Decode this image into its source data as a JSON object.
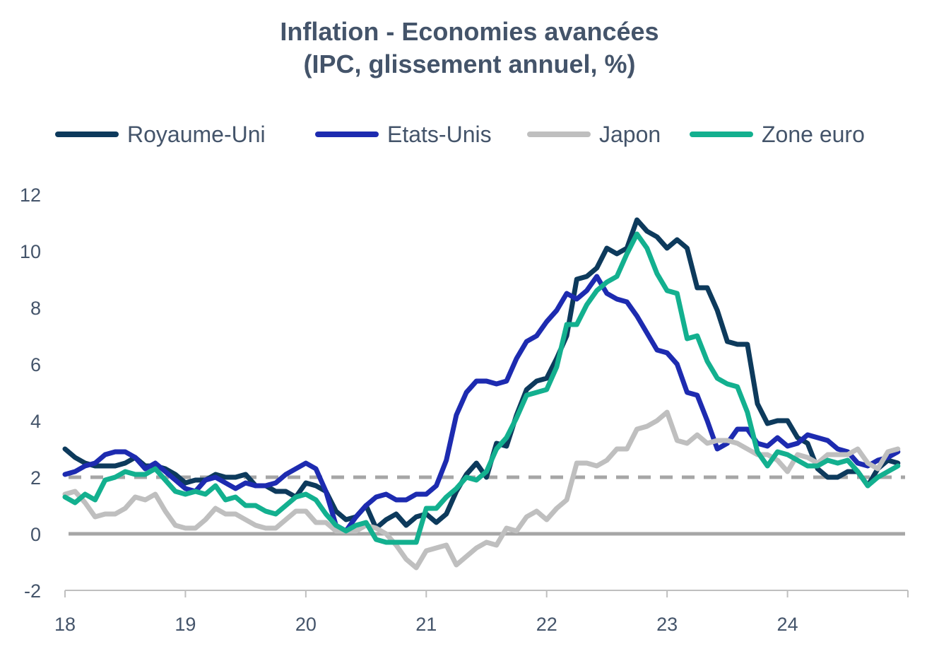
{
  "chart_data": {
    "type": "line",
    "title": "Inflation - Economies avancées",
    "subtitle": "(IPC, glissement annuel, %)",
    "xlabel": "",
    "ylabel": "",
    "x_ticks": [
      "18",
      "19",
      "20",
      "21",
      "22",
      "23",
      "24"
    ],
    "y_ticks": [
      "12",
      "10",
      "8",
      "6",
      "4",
      "2",
      "0",
      "-2"
    ],
    "ylim": [
      -2,
      12
    ],
    "xlim": [
      2018.0,
      2025.0
    ],
    "legend_position": "top",
    "grid": false,
    "reference_lines": [
      {
        "y": 0,
        "style": "solid",
        "color": "#a6a6a6"
      },
      {
        "y": 2,
        "style": "dashed",
        "color": "#a6a6a6"
      }
    ],
    "series": [
      {
        "name": "Royaume-Uni",
        "color": "#0d3a5c",
        "x_start": 2018.0,
        "step_months": 1,
        "values": [
          3.0,
          2.7,
          2.5,
          2.4,
          2.4,
          2.4,
          2.5,
          2.7,
          2.4,
          2.4,
          2.3,
          2.1,
          1.8,
          1.9,
          1.9,
          2.1,
          2.0,
          2.0,
          2.1,
          1.7,
          1.7,
          1.5,
          1.5,
          1.3,
          1.8,
          1.7,
          1.5,
          0.8,
          0.5,
          0.6,
          1.0,
          0.2,
          0.5,
          0.7,
          0.3,
          0.6,
          0.7,
          0.4,
          0.7,
          1.5,
          2.1,
          2.5,
          2.0,
          3.2,
          3.1,
          4.2,
          5.1,
          5.4,
          5.5,
          6.2,
          7.0,
          9.0,
          9.1,
          9.4,
          10.1,
          9.9,
          10.1,
          11.1,
          10.7,
          10.5,
          10.1,
          10.4,
          10.1,
          8.7,
          8.7,
          7.9,
          6.8,
          6.7,
          6.7,
          4.6,
          3.9,
          4.0,
          4.0,
          3.4,
          3.2,
          2.3,
          2.0,
          2.0,
          2.2,
          2.2,
          1.7,
          2.3,
          2.6,
          2.5
        ]
      },
      {
        "name": "Etats-Unis",
        "color": "#1d2bb0",
        "x_start": 2018.0,
        "step_months": 1,
        "values": [
          2.1,
          2.2,
          2.4,
          2.5,
          2.8,
          2.9,
          2.9,
          2.7,
          2.3,
          2.5,
          2.2,
          1.9,
          1.6,
          1.5,
          1.9,
          2.0,
          1.8,
          1.6,
          1.8,
          1.7,
          1.7,
          1.8,
          2.1,
          2.3,
          2.5,
          2.3,
          1.5,
          0.3,
          0.1,
          0.6,
          1.0,
          1.3,
          1.4,
          1.2,
          1.2,
          1.4,
          1.4,
          1.7,
          2.6,
          4.2,
          5.0,
          5.4,
          5.4,
          5.3,
          5.4,
          6.2,
          6.8,
          7.0,
          7.5,
          7.9,
          8.5,
          8.3,
          8.6,
          9.1,
          8.5,
          8.3,
          8.2,
          7.7,
          7.1,
          6.5,
          6.4,
          6.0,
          5.0,
          4.9,
          4.0,
          3.0,
          3.2,
          3.7,
          3.7,
          3.2,
          3.1,
          3.4,
          3.1,
          3.2,
          3.5,
          3.4,
          3.3,
          3.0,
          2.9,
          2.5,
          2.4,
          2.6,
          2.7,
          2.9
        ]
      },
      {
        "name": "Japon",
        "color": "#bfbfbf",
        "x_start": 2018.0,
        "step_months": 1,
        "values": [
          1.4,
          1.5,
          1.1,
          0.6,
          0.7,
          0.7,
          0.9,
          1.3,
          1.2,
          1.4,
          0.8,
          0.3,
          0.2,
          0.2,
          0.5,
          0.9,
          0.7,
          0.7,
          0.5,
          0.3,
          0.2,
          0.2,
          0.5,
          0.8,
          0.8,
          0.4,
          0.4,
          0.1,
          0.1,
          0.1,
          0.3,
          0.2,
          0.0,
          -0.4,
          -0.9,
          -1.2,
          -0.6,
          -0.5,
          -0.4,
          -1.1,
          -0.8,
          -0.5,
          -0.3,
          -0.4,
          0.2,
          0.1,
          0.6,
          0.8,
          0.5,
          0.9,
          1.2,
          2.5,
          2.5,
          2.4,
          2.6,
          3.0,
          3.0,
          3.7,
          3.8,
          4.0,
          4.3,
          3.3,
          3.2,
          3.5,
          3.2,
          3.3,
          3.3,
          3.2,
          3.0,
          2.8,
          2.8,
          2.6,
          2.2,
          2.8,
          2.7,
          2.5,
          2.8,
          2.8,
          2.8,
          3.0,
          2.5,
          2.3,
          2.9,
          3.0
        ]
      },
      {
        "name": "Zone euro",
        "color": "#13b08f",
        "x_start": 2018.0,
        "step_months": 1,
        "values": [
          1.3,
          1.1,
          1.4,
          1.2,
          1.9,
          2.0,
          2.2,
          2.1,
          2.1,
          2.3,
          1.9,
          1.5,
          1.4,
          1.5,
          1.4,
          1.7,
          1.2,
          1.3,
          1.0,
          1.0,
          0.8,
          0.7,
          1.0,
          1.3,
          1.4,
          1.2,
          0.7,
          0.3,
          0.1,
          0.3,
          0.4,
          -0.2,
          -0.3,
          -0.3,
          -0.3,
          -0.3,
          0.9,
          0.9,
          1.3,
          1.6,
          2.0,
          1.9,
          2.2,
          3.0,
          3.4,
          4.1,
          4.9,
          5.0,
          5.1,
          5.9,
          7.4,
          7.4,
          8.1,
          8.6,
          8.9,
          9.1,
          9.9,
          10.6,
          10.1,
          9.2,
          8.6,
          8.5,
          6.9,
          7.0,
          6.1,
          5.5,
          5.3,
          5.2,
          4.3,
          2.9,
          2.4,
          2.9,
          2.8,
          2.6,
          2.4,
          2.4,
          2.6,
          2.5,
          2.6,
          2.2,
          1.7,
          2.0,
          2.2,
          2.4
        ]
      }
    ]
  }
}
